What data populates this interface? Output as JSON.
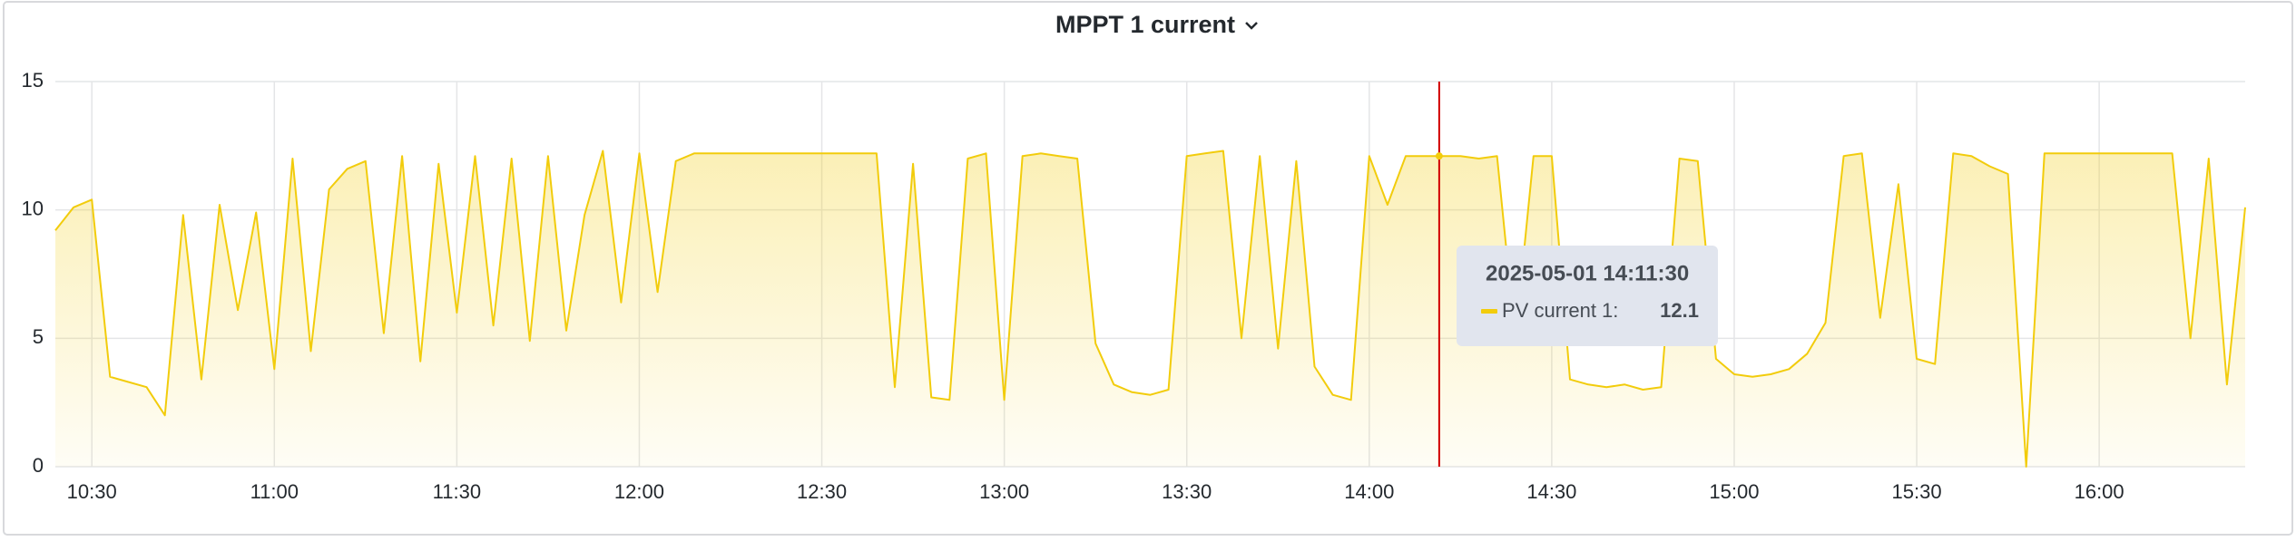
{
  "chart_data": {
    "type": "line",
    "title": "MPPT 1 current",
    "x": [
      "10:24",
      "10:27",
      "10:30",
      "10:33",
      "10:36",
      "10:39",
      "10:42",
      "10:45",
      "10:48",
      "10:51",
      "10:54",
      "10:57",
      "11:00",
      "11:03",
      "11:06",
      "11:09",
      "11:12",
      "11:15",
      "11:18",
      "11:21",
      "11:24",
      "11:27",
      "11:30",
      "11:33",
      "11:36",
      "11:39",
      "11:42",
      "11:45",
      "11:48",
      "11:51",
      "11:54",
      "11:57",
      "12:00",
      "12:03",
      "12:06",
      "12:09",
      "12:12",
      "12:15",
      "12:18",
      "12:21",
      "12:24",
      "12:27",
      "12:30",
      "12:33",
      "12:36",
      "12:39",
      "12:42",
      "12:45",
      "12:48",
      "12:51",
      "12:54",
      "12:57",
      "13:00",
      "13:03",
      "13:06",
      "13:09",
      "13:12",
      "13:15",
      "13:18",
      "13:21",
      "13:24",
      "13:27",
      "13:30",
      "13:33",
      "13:36",
      "13:39",
      "13:42",
      "13:45",
      "13:48",
      "13:51",
      "13:54",
      "13:57",
      "14:00",
      "14:03",
      "14:06",
      "14:09",
      "14:12",
      "14:15",
      "14:18",
      "14:21",
      "14:24",
      "14:27",
      "14:30",
      "14:33",
      "14:36",
      "14:39",
      "14:42",
      "14:45",
      "14:48",
      "14:51",
      "14:54",
      "14:57",
      "15:00",
      "15:03",
      "15:06",
      "15:09",
      "15:12",
      "15:15",
      "15:18",
      "15:21",
      "15:24",
      "15:27",
      "15:30",
      "15:33",
      "15:36",
      "15:39",
      "15:42",
      "15:45",
      "15:48",
      "15:51",
      "15:54",
      "15:57",
      "16:00",
      "16:03",
      "16:06",
      "16:09",
      "16:12",
      "16:15",
      "16:18",
      "16:21",
      "16:24"
    ],
    "series": [
      {
        "color": "#f2cc0c",
        "values": [
          9.2,
          10.1,
          10.4,
          3.5,
          3.3,
          3.1,
          2.0,
          9.8,
          3.4,
          10.2,
          6.1,
          9.9,
          3.8,
          12.0,
          4.5,
          10.8,
          11.6,
          11.9,
          5.2,
          12.1,
          4.1,
          11.8,
          6.0,
          12.1,
          5.5,
          12.0,
          4.9,
          12.1,
          5.3,
          9.8,
          12.3,
          6.4,
          12.2,
          6.8,
          11.9,
          12.2,
          12.2,
          12.2,
          12.2,
          12.2,
          12.2,
          12.2,
          12.2,
          12.2,
          12.2,
          12.2,
          3.1,
          11.8,
          2.7,
          2.6,
          12.0,
          12.2,
          2.6,
          12.1,
          12.2,
          12.1,
          12.0,
          4.8,
          3.2,
          2.9,
          2.8,
          3.0,
          12.1,
          12.2,
          12.3,
          5.0,
          12.1,
          4.6,
          11.9,
          3.9,
          2.8,
          2.6,
          12.1,
          10.2,
          12.1,
          12.1,
          12.1,
          12.1,
          12.0,
          12.1,
          5.0,
          12.1,
          12.1,
          3.4,
          3.2,
          3.1,
          3.2,
          3.0,
          3.1,
          12.0,
          11.9,
          4.2,
          3.6,
          3.5,
          3.6,
          3.8,
          4.4,
          5.6,
          12.1,
          12.2,
          5.8,
          11.0,
          4.2,
          4.0,
          12.2,
          12.1,
          11.7,
          11.4,
          0,
          12.2,
          12.2,
          12.2,
          12.2,
          12.2,
          12.2,
          12.2,
          12.2,
          5.0,
          12.0,
          3.2,
          10.1
        ]
      }
    ],
    "xlim": [
      "10:24",
      "16:24"
    ],
    "xticks": [
      "10:30",
      "11:00",
      "11:30",
      "12:00",
      "12:30",
      "13:00",
      "13:30",
      "14:00",
      "14:30",
      "15:00",
      "15:30",
      "16:00"
    ],
    "ylim": [
      0,
      15
    ],
    "yticks": [
      0,
      5,
      10,
      15
    ],
    "grid": true,
    "tooltip": {
      "time": "2025-05-01 14:11:30",
      "label": "PV current 1:",
      "value": 12.1,
      "crosshair_color": "#d10000"
    }
  }
}
